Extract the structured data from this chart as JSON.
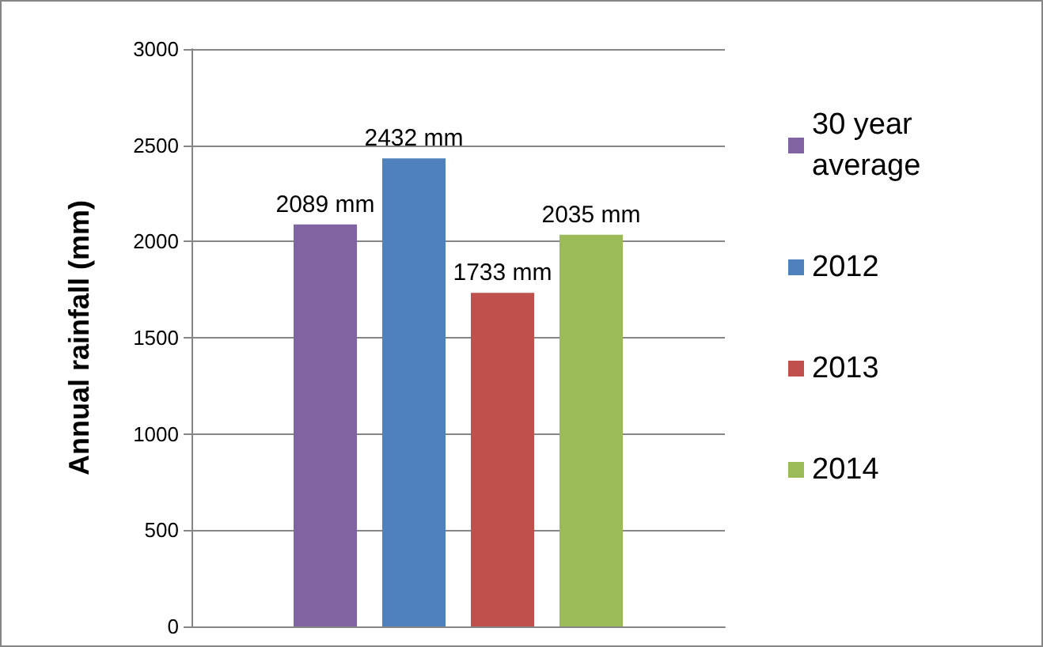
{
  "chart_data": {
    "type": "bar",
    "ylabel": "Annual rainfall (mm)",
    "categories": [
      null
    ],
    "series": [
      {
        "name": "30 year average",
        "color": "#8064a2",
        "values": [
          2089
        ],
        "value_labels": [
          "2089 mm"
        ]
      },
      {
        "name": "2012",
        "color": "#4f81bd",
        "values": [
          2432
        ],
        "value_labels": [
          "2432 mm"
        ]
      },
      {
        "name": "2013",
        "color": "#c0504d",
        "values": [
          1733
        ],
        "value_labels": [
          "1733 mm"
        ]
      },
      {
        "name": "2014",
        "color": "#9bbb59",
        "values": [
          2035
        ],
        "value_labels": [
          "2035 mm"
        ]
      }
    ],
    "ylim": [
      0,
      3000
    ],
    "yticks": [
      0,
      500,
      1000,
      1500,
      2000,
      2500,
      3000
    ],
    "grid": "y",
    "legend": "right"
  }
}
